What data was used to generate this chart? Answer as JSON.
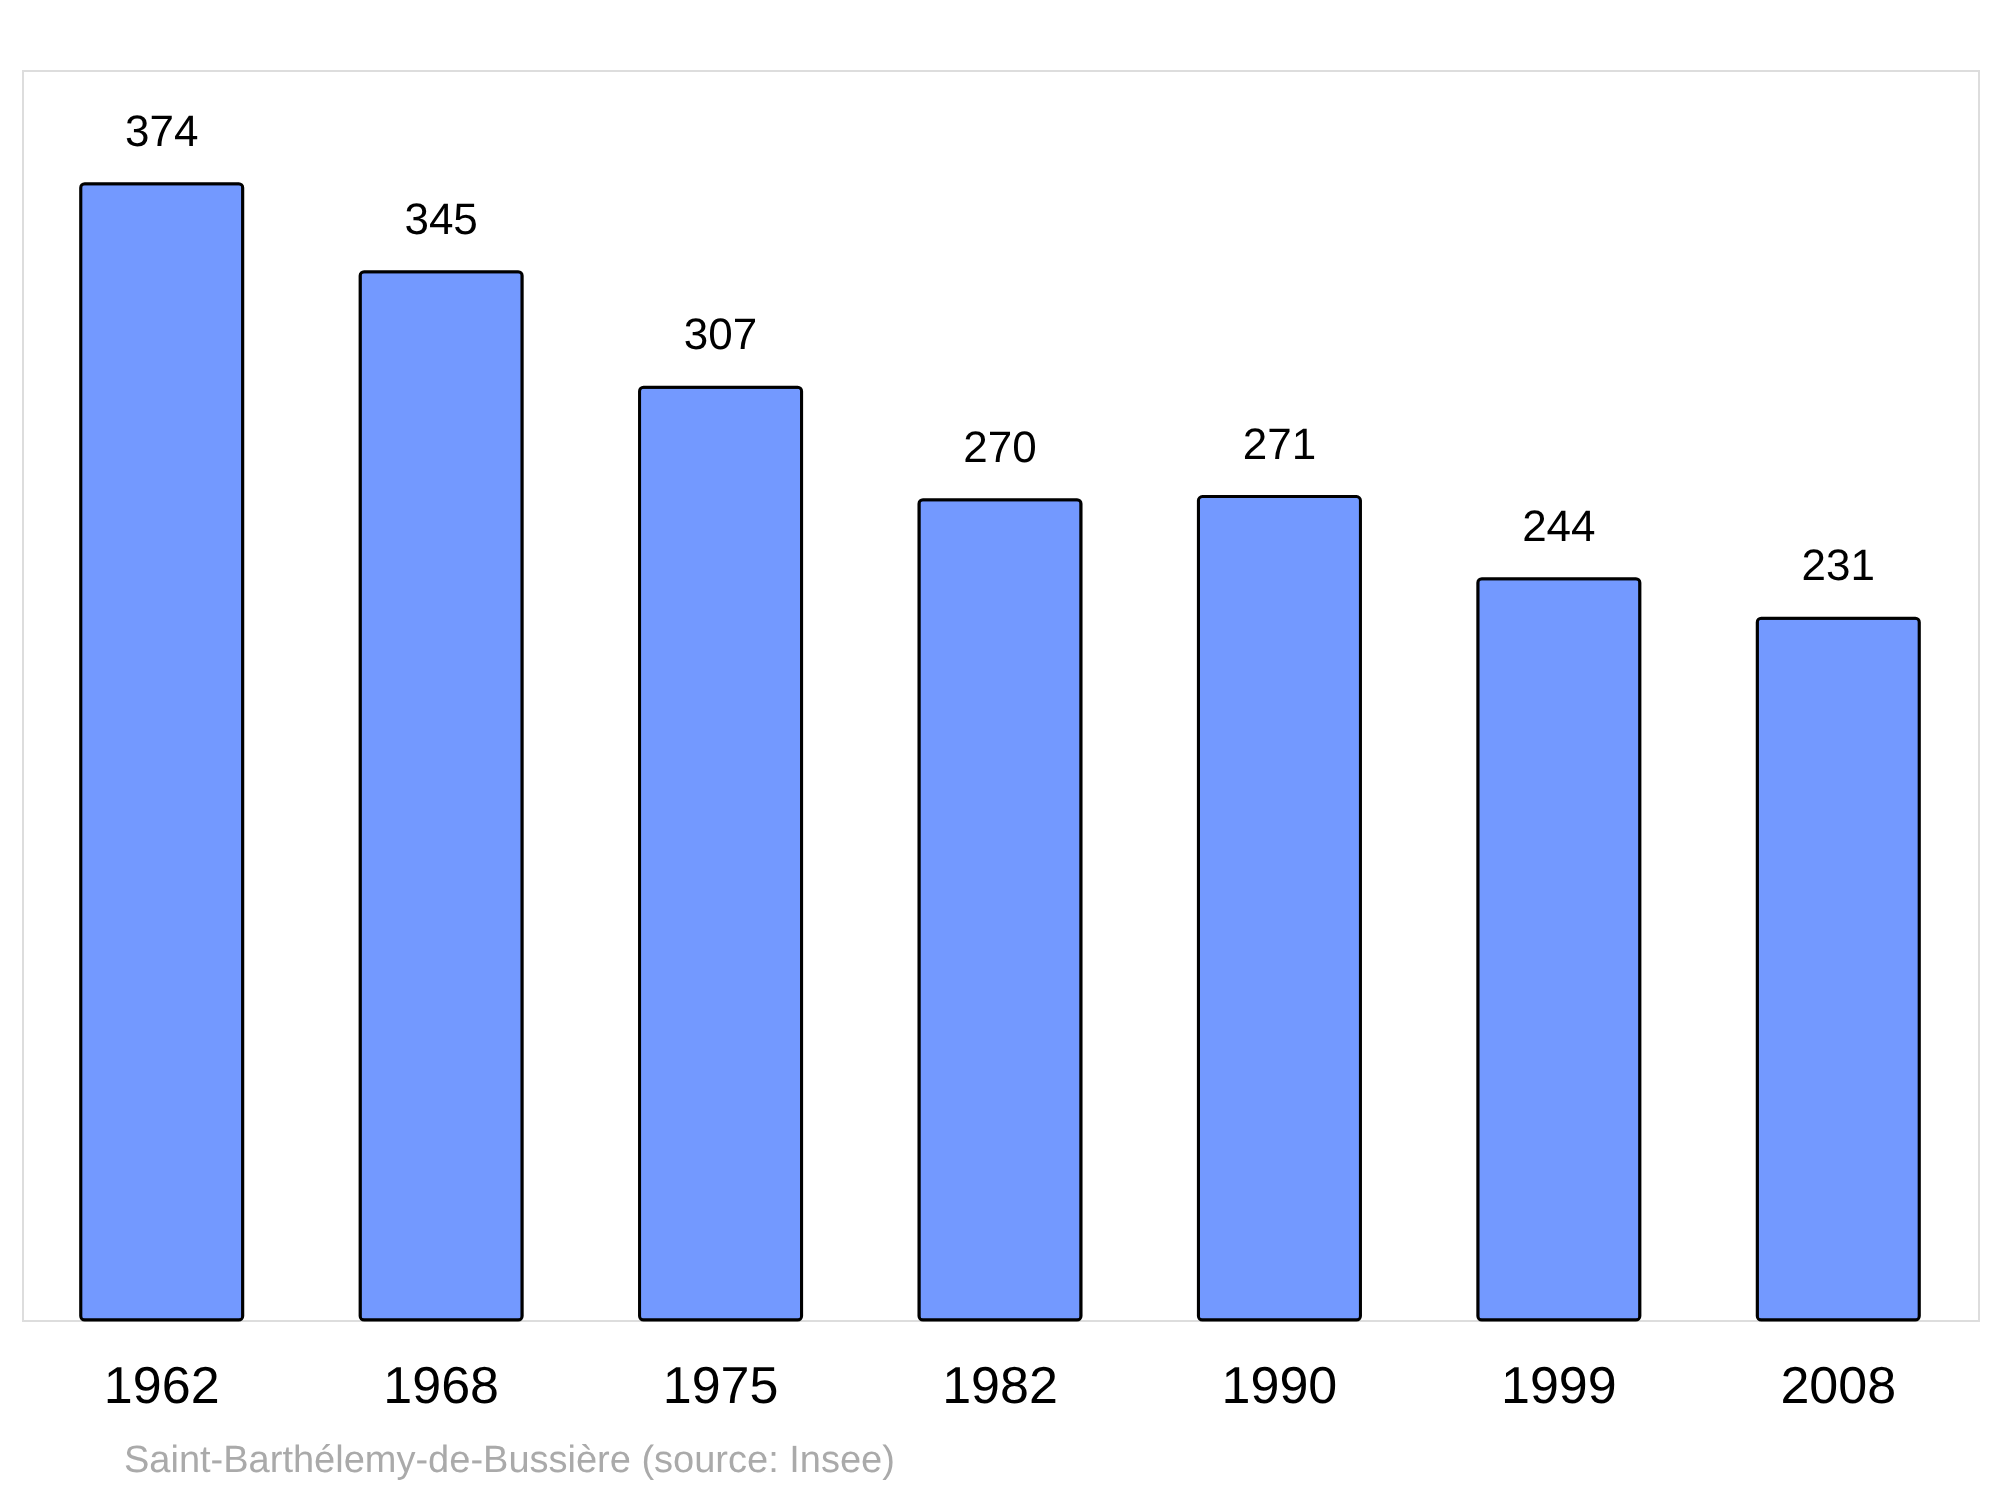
{
  "chart_data": {
    "type": "bar",
    "categories": [
      "1962",
      "1968",
      "1975",
      "1982",
      "1990",
      "1999",
      "2008"
    ],
    "values": [
      374,
      345,
      307,
      270,
      271,
      244,
      231
    ],
    "color": "#7399ff",
    "data_labels": true,
    "annotations": [
      "Saint-Barthélemy-de-Bussière    (source: Insee)"
    ]
  }
}
